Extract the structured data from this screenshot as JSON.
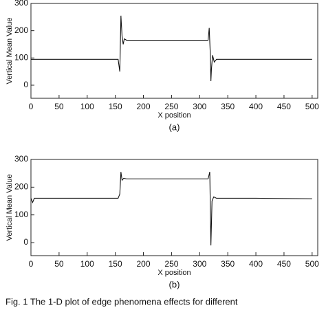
{
  "chart_data": [
    {
      "type": "line",
      "label": "(a)",
      "x_label": "X position",
      "y_label": "Vertical Mean Value",
      "xlim": [
        0,
        510
      ],
      "ylim": [
        -48,
        300
      ],
      "xticks": [
        0,
        50,
        100,
        150,
        200,
        250,
        300,
        350,
        400,
        450,
        500
      ],
      "yticks": [
        0,
        100,
        200,
        300
      ],
      "grid": false,
      "color": "#111111",
      "x": [
        0,
        50,
        100,
        155,
        158,
        160,
        162,
        164,
        166,
        170,
        200,
        250,
        300,
        315,
        317,
        319,
        320,
        321,
        323,
        326,
        330,
        400,
        500
      ],
      "values": [
        95,
        95,
        95,
        95,
        50,
        255,
        180,
        150,
        170,
        165,
        165,
        165,
        165,
        165,
        210,
        110,
        15,
        60,
        110,
        85,
        95,
        95,
        95
      ]
    },
    {
      "type": "line",
      "label": "(b)",
      "x_label": "X position",
      "y_label": "Vertical Mean Value",
      "xlim": [
        0,
        510
      ],
      "ylim": [
        -47,
        300
      ],
      "xticks": [
        0,
        50,
        100,
        150,
        200,
        250,
        300,
        350,
        400,
        450,
        500
      ],
      "yticks": [
        0,
        100,
        200,
        300
      ],
      "grid": false,
      "color": "#111111",
      "x": [
        0,
        3,
        6,
        50,
        100,
        155,
        158,
        160,
        162,
        165,
        170,
        250,
        310,
        315,
        318,
        320,
        322,
        325,
        330,
        400,
        500
      ],
      "values": [
        160,
        145,
        160,
        160,
        160,
        160,
        175,
        255,
        225,
        232,
        230,
        230,
        230,
        230,
        255,
        -10,
        150,
        165,
        160,
        160,
        158
      ]
    }
  ],
  "caption": "Fig. 1 The 1-D plot of edge phenomena effects for different"
}
